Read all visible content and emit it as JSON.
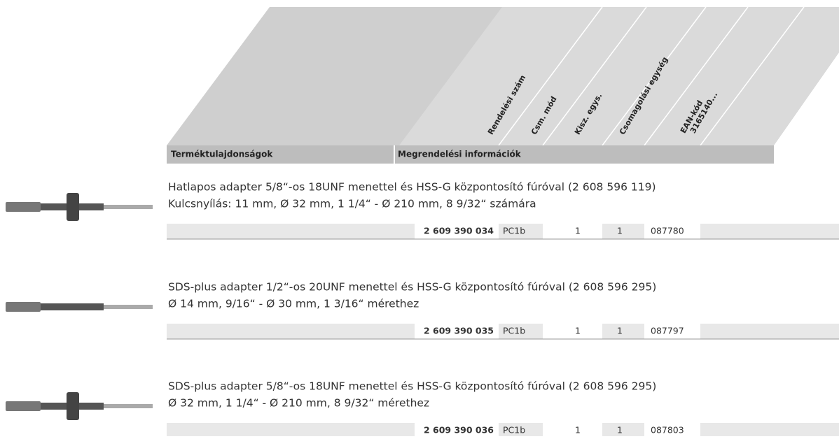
{
  "header": {
    "columns": [
      "Rendelési szám",
      "Csm. mód",
      "Kisz. egys.",
      "Csomagolási egység",
      "EAN-kód",
      "3165140..."
    ],
    "left_title": "Terméktulajdonságok",
    "right_title": "Megrendelési információk"
  },
  "products": [
    {
      "lines": [
        "Hatlapos adapter 5/8“-os 18UNF menettel és HSS-G központosító fúróval (2 608 596 119)",
        "Kulcsnyílás: 11 mm, Ø 32 mm, 1 1/4“ - Ø 210 mm, 8 9/32“ számára"
      ],
      "order_number": "2 609 390 034",
      "mode": "PC1b",
      "unit": "1",
      "pack": "1",
      "ean": "087780"
    },
    {
      "lines": [
        "SDS-plus adapter 1/2“-os 20UNF menettel és HSS-G központosító fúróval (2 608 596 295)",
        "Ø 14 mm, 9/16“ - Ø 30 mm, 1 3/16“ mérethez"
      ],
      "order_number": "2 609 390 035",
      "mode": "PC1b",
      "unit": "1",
      "pack": "1",
      "ean": "087797"
    },
    {
      "lines": [
        "SDS-plus adapter 5/8“-os 18UNF menettel és HSS-G központosító fúróval (2 608 596 295)",
        "Ø 32 mm, 1 1/4“ - Ø 210 mm, 8 9/32“ mérethez"
      ],
      "order_number": "2 609 390 036",
      "mode": "PC1b",
      "unit": "1",
      "pack": "1",
      "ean": "087803"
    }
  ]
}
